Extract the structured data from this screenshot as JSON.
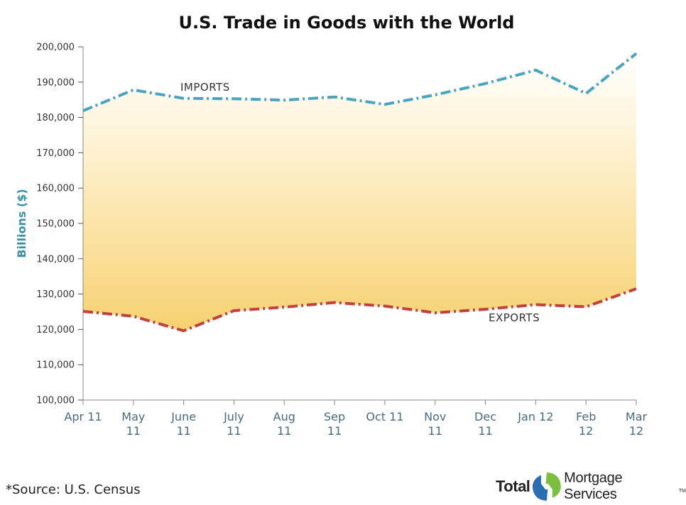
{
  "chart_data": {
    "type": "area",
    "title": "U.S. Trade in Goods with the World",
    "ylabel": "Billions ($)",
    "xlabel": "",
    "ylim": [
      100000,
      200000
    ],
    "yticks": [
      "100,000",
      "110,000",
      "120,000",
      "130,000",
      "140,000",
      "150,000",
      "160,000",
      "170,000",
      "180,000",
      "190,000",
      "200,000"
    ],
    "ytick_values": [
      100000,
      110000,
      120000,
      130000,
      140000,
      150000,
      160000,
      170000,
      180000,
      190000,
      200000
    ],
    "categories": [
      [
        "Apr 11"
      ],
      [
        "May",
        "11"
      ],
      [
        "June",
        "11"
      ],
      [
        "July",
        "11"
      ],
      [
        "Aug",
        "11"
      ],
      [
        "Sep",
        "11"
      ],
      [
        "Oct 11"
      ],
      [
        "Nov",
        "11"
      ],
      [
        "Dec",
        "11"
      ],
      [
        "Jan 12"
      ],
      [
        "Feb",
        "12"
      ],
      [
        "Mar",
        "12"
      ]
    ],
    "series": [
      {
        "name": "IMPORTS",
        "color": "#4ba3bd",
        "values": [
          181900,
          187800,
          185400,
          185300,
          184900,
          185800,
          183700,
          186400,
          189600,
          193400,
          186800,
          198100
        ]
      },
      {
        "name": "EXPORTS",
        "color": "#c0413f",
        "values": [
          125100,
          123700,
          119600,
          125300,
          126300,
          127600,
          126600,
          124700,
          125700,
          127000,
          126400,
          131500
        ]
      }
    ],
    "fill": "gradient between series (gold to white)",
    "grid": false
  },
  "source_note": "*Source: U.S. Census",
  "logo": {
    "word1": "Total",
    "word2": "Mortgage Services",
    "tm": "TM",
    "colors": {
      "green": "#7cbf3f",
      "blue": "#2a6db0",
      "dark": "#222222"
    }
  }
}
